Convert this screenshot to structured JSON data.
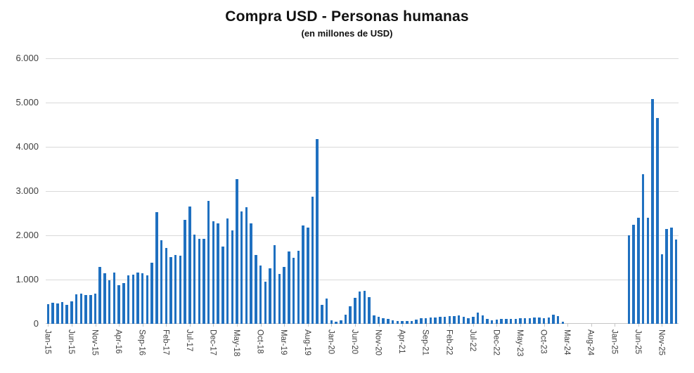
{
  "title": "Compra USD - Personas humanas",
  "subtitle": "(en millones de USD)",
  "chart_data": {
    "type": "bar",
    "title": "Compra USD - Personas humanas",
    "subtitle": "(en millones de USD)",
    "unit": "millones de USD",
    "ylim": [
      0,
      6000
    ],
    "grid": "horizontal",
    "legend": "none",
    "bar_color": "#1F70C0",
    "gridline_color": "#D9D9D9",
    "axis_color": "#C6C6C6",
    "label_color": "#404040",
    "y_tick_labels": [
      "0",
      "1.000",
      "2.000",
      "3.000",
      "4.000",
      "5.000",
      "6.000"
    ],
    "y_tick_values": [
      0,
      1000,
      2000,
      3000,
      4000,
      5000,
      6000
    ],
    "x_label_interval": 5,
    "x_tick_labels": [
      "Jan-15",
      "Jun-15",
      "Nov-15",
      "Apr-16",
      "Sep-16",
      "Feb-17",
      "Jul-17",
      "Dec-17",
      "May-18",
      "Oct-18",
      "Mar-19",
      "Aug-19",
      "Jan-20",
      "Jun-20",
      "Nov-20",
      "Apr-21",
      "Sep-21",
      "Feb-22",
      "Jul-22",
      "Dec-22",
      "May-23",
      "Oct-23",
      "Mar-24",
      "Aug-24",
      "Jan-25",
      "Jun-25",
      "Nov-25"
    ],
    "categories": [
      "Jan-15",
      "Feb-15",
      "Mar-15",
      "Apr-15",
      "May-15",
      "Jun-15",
      "Jul-15",
      "Aug-15",
      "Sep-15",
      "Oct-15",
      "Nov-15",
      "Dec-15",
      "Jan-16",
      "Feb-16",
      "Mar-16",
      "Apr-16",
      "May-16",
      "Jun-16",
      "Jul-16",
      "Aug-16",
      "Sep-16",
      "Oct-16",
      "Nov-16",
      "Dec-16",
      "Jan-17",
      "Feb-17",
      "Mar-17",
      "Apr-17",
      "May-17",
      "Jun-17",
      "Jul-17",
      "Aug-17",
      "Sep-17",
      "Oct-17",
      "Nov-17",
      "Dec-17",
      "Jan-18",
      "Feb-18",
      "Mar-18",
      "Apr-18",
      "May-18",
      "Jun-18",
      "Jul-18",
      "Aug-18",
      "Sep-18",
      "Oct-18",
      "Nov-18",
      "Dec-18",
      "Jan-19",
      "Feb-19",
      "Mar-19",
      "Apr-19",
      "May-19",
      "Jun-19",
      "Jul-19",
      "Aug-19",
      "Sep-19",
      "Oct-19",
      "Nov-19",
      "Dec-19",
      "Jan-20",
      "Feb-20",
      "Mar-20",
      "Apr-20",
      "May-20",
      "Jun-20",
      "Jul-20",
      "Aug-20",
      "Sep-20",
      "Oct-20",
      "Nov-20",
      "Dec-20",
      "Jan-21",
      "Feb-21",
      "Mar-21",
      "Apr-21",
      "May-21",
      "Jun-21",
      "Jul-21",
      "Aug-21",
      "Sep-21",
      "Oct-21",
      "Nov-21",
      "Dec-21",
      "Jan-22",
      "Feb-22",
      "Mar-22",
      "Apr-22",
      "May-22",
      "Jun-22",
      "Jul-22",
      "Aug-22",
      "Sep-22",
      "Oct-22",
      "Nov-22",
      "Dec-22",
      "Jan-23",
      "Feb-23",
      "Mar-23",
      "Apr-23",
      "May-23",
      "Jun-23",
      "Jul-23",
      "Aug-23",
      "Sep-23",
      "Oct-23",
      "Nov-23",
      "Dec-23",
      "Jan-24",
      "Feb-24",
      "Mar-24",
      "Apr-24",
      "May-24",
      "Jun-24",
      "Jul-24",
      "Aug-24",
      "Sep-24",
      "Oct-24",
      "Nov-24",
      "Dec-24",
      "Jan-25",
      "Feb-25",
      "Mar-25",
      "Apr-25",
      "May-25",
      "Jun-25",
      "Jul-25",
      "Aug-25",
      "Sep-25",
      "Oct-25",
      "Nov-25",
      "Dec-25",
      "Jan-26",
      "Feb-26"
    ],
    "values": [
      447,
      470,
      460,
      490,
      425,
      505,
      665,
      680,
      655,
      645,
      690,
      1279,
      1150,
      990,
      1160,
      873,
      914,
      1096,
      1111,
      1152,
      1147,
      1096,
      1386,
      2525,
      1883,
      1720,
      1508,
      1561,
      1540,
      2349,
      2656,
      2011,
      1921,
      1926,
      2778,
      2317,
      2271,
      1745,
      2382,
      2111,
      3273,
      2536,
      2637,
      2265,
      1561,
      1323,
      952,
      1254,
      1772,
      1127,
      1280,
      1630,
      1497,
      1651,
      2228,
      2169,
      2873,
      4169,
      423,
      571,
      79,
      53,
      79,
      212,
      397,
      582,
      730,
      751,
      608,
      185,
      152,
      130,
      115,
      72,
      69,
      63,
      58,
      63,
      90,
      122,
      132,
      143,
      148,
      159,
      159,
      175,
      175,
      185,
      159,
      122,
      159,
      249,
      196,
      106,
      79,
      90,
      106,
      106,
      116,
      116,
      122,
      122,
      132,
      143,
      143,
      132,
      143,
      212,
      175,
      53,
      0,
      0,
      0,
      0,
      0,
      0,
      0,
      0,
      0,
      0,
      0,
      0,
      0,
      2005,
      2233,
      2398,
      3385,
      2398,
      5077,
      4658,
      1565,
      2149,
      2175,
      1910
    ]
  }
}
